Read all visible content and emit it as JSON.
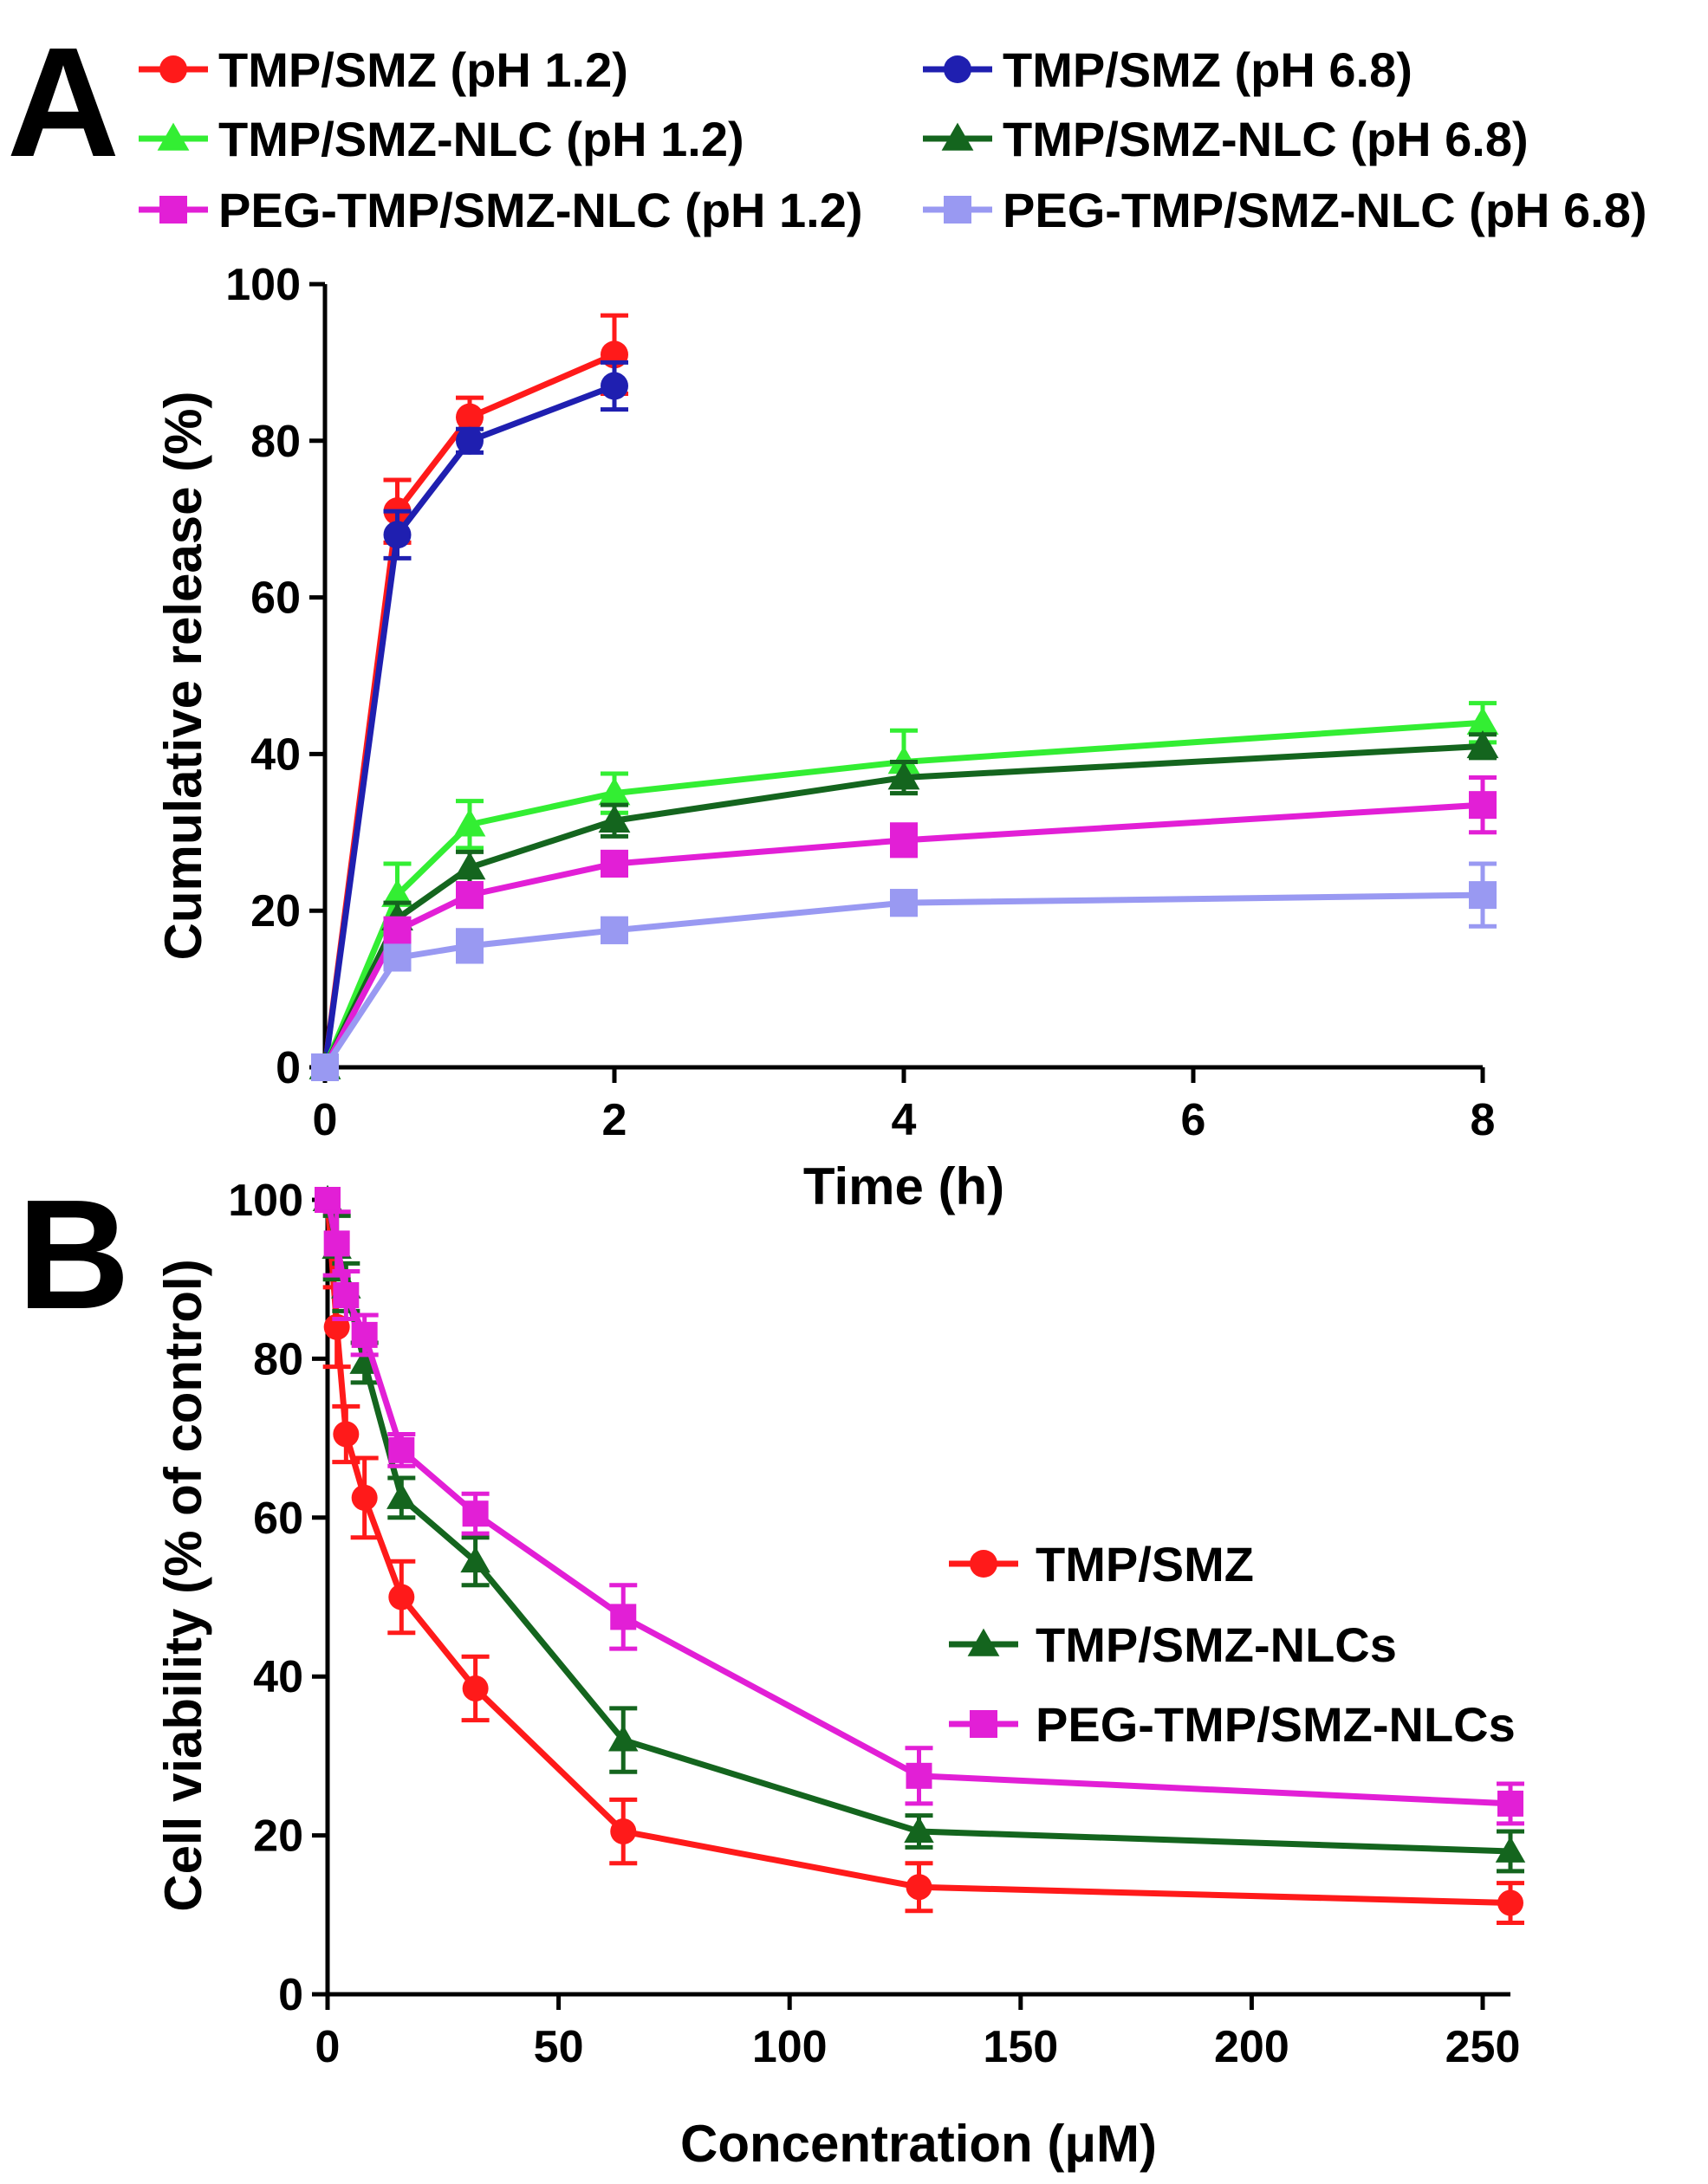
{
  "chart_data": [
    {
      "panel": "A",
      "type": "line",
      "xlabel": "Time (h)",
      "ylabel": "Cumulative release (%)",
      "xlim": [
        0,
        8
      ],
      "ylim": [
        0,
        100
      ],
      "xticks": [
        "0",
        "2",
        "4",
        "6",
        "8"
      ],
      "yticks": [
        "0",
        "20",
        "40",
        "60",
        "80",
        "100"
      ],
      "legend_position": "top",
      "series": [
        {
          "name": "TMP/SMZ (pH 1.2)",
          "color": "#ff1a1a",
          "marker": "circle",
          "x": [
            0,
            0.5,
            1,
            2
          ],
          "y": [
            0,
            71,
            83,
            91
          ],
          "err": [
            0,
            4,
            2.5,
            5
          ]
        },
        {
          "name": "TMP/SMZ (pH 6.8)",
          "color": "#1f1fb0",
          "marker": "circle",
          "x": [
            0,
            0.5,
            1,
            2
          ],
          "y": [
            0,
            68,
            80,
            87
          ],
          "err": [
            0,
            3,
            1.5,
            3
          ]
        },
        {
          "name": "TMP/SMZ-NLC (pH 1.2)",
          "color": "#33ee33",
          "marker": "triangle",
          "x": [
            0,
            0.5,
            1,
            2,
            4,
            8
          ],
          "y": [
            0,
            22,
            31,
            35,
            39,
            44
          ],
          "err": [
            0,
            4,
            3,
            2.5,
            4,
            2.5
          ]
        },
        {
          "name": "TMP/SMZ-NLC (pH 6.8)",
          "color": "#14651e",
          "marker": "triangle",
          "x": [
            0,
            0.5,
            1,
            2,
            4,
            8
          ],
          "y": [
            0,
            19,
            25.5,
            31.5,
            37,
            41
          ],
          "err": [
            0,
            2,
            2,
            2,
            2,
            1.5
          ]
        },
        {
          "name": "PEG-TMP/SMZ-NLC (pH 1.2)",
          "color": "#e21fd6",
          "marker": "square",
          "x": [
            0,
            0.5,
            1,
            2,
            4,
            8
          ],
          "y": [
            0,
            17.5,
            22,
            26,
            29,
            33.5
          ],
          "err": [
            0,
            1.5,
            1.5,
            1.5,
            2,
            3.5
          ]
        },
        {
          "name": "PEG-TMP/SMZ-NLC (pH 6.8)",
          "color": "#9999f2",
          "marker": "square",
          "x": [
            0,
            0.5,
            1,
            2,
            4,
            8
          ],
          "y": [
            0,
            14,
            15.5,
            17.5,
            21,
            22
          ],
          "err": [
            0,
            1.5,
            2,
            1.5,
            1.5,
            4
          ]
        }
      ]
    },
    {
      "panel": "B",
      "type": "line",
      "xlabel": "Concentration (μM)",
      "ylabel": "Cell viability (% of control)",
      "xlim": [
        0,
        256
      ],
      "ylim": [
        0,
        100
      ],
      "xticks": [
        "0",
        "50",
        "100",
        "150",
        "200",
        "250"
      ],
      "yticks": [
        "0",
        "20",
        "40",
        "60",
        "80",
        "100"
      ],
      "legend_position": "right",
      "series": [
        {
          "name": "TMP/SMZ",
          "color": "#ff1a1a",
          "marker": "circle",
          "x": [
            0,
            2,
            4,
            8,
            16,
            32,
            64,
            128,
            256
          ],
          "y": [
            100,
            84,
            70.5,
            62.5,
            50,
            38.5,
            20.5,
            13.5,
            11.5
          ],
          "err": [
            0,
            5,
            3.5,
            5,
            4.5,
            4,
            4,
            3,
            2.5
          ]
        },
        {
          "name": "TMP/SMZ-NLCs",
          "color": "#14651e",
          "marker": "triangle",
          "x": [
            0,
            2,
            4,
            8,
            16,
            32,
            64,
            128,
            256
          ],
          "y": [
            100,
            94,
            89,
            79.5,
            62.5,
            54.5,
            32,
            20.5,
            18
          ],
          "err": [
            0,
            4,
            3,
            2.5,
            2.5,
            3,
            4,
            2,
            2.5
          ]
        },
        {
          "name": "PEG-TMP/SMZ-NLCs",
          "color": "#e21fd6",
          "marker": "square",
          "x": [
            0,
            2,
            4,
            8,
            16,
            32,
            64,
            128,
            256
          ],
          "y": [
            100,
            94.5,
            88,
            83,
            68.5,
            60.5,
            47.5,
            27.5,
            24
          ],
          "err": [
            0,
            4,
            3,
            2.5,
            2,
            2.5,
            4,
            3.5,
            2.5
          ]
        }
      ]
    }
  ]
}
